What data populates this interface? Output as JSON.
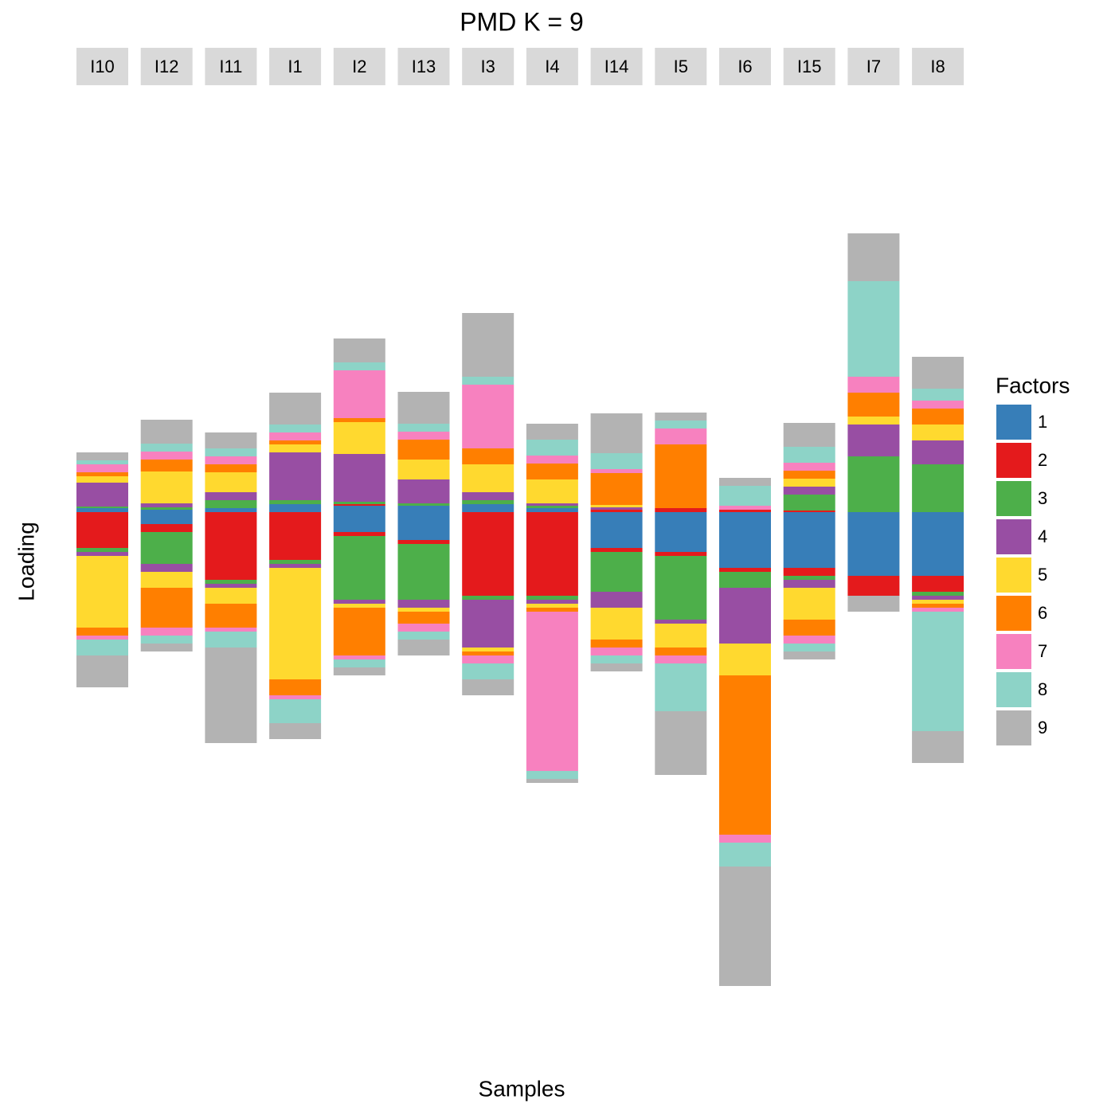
{
  "chart_data": {
    "type": "bar",
    "title": "PMD K = 9",
    "x_label": "Samples",
    "y_label": "Loading",
    "legend_title": "Factors",
    "categories": [
      "I10",
      "I12",
      "I11",
      "I1",
      "I2",
      "I13",
      "I3",
      "I4",
      "I14",
      "I5",
      "I6",
      "I15",
      "I7",
      "I8"
    ],
    "ylim": [
      -640,
      500
    ],
    "series": [
      {
        "name": "1",
        "color": "#377eb8",
        "values": [
          5,
          3,
          5,
          10,
          8,
          8,
          10,
          5,
          0,
          0,
          0,
          0,
          0,
          0
        ],
        "values_below": [
          0,
          -15,
          0,
          0,
          -25,
          -35,
          0,
          0,
          -45,
          -50,
          -70,
          -70,
          -80,
          -80
        ]
      },
      {
        "name": "2",
        "color": "#e41a1c",
        "values": [
          0,
          0,
          0,
          0,
          2,
          0,
          0,
          0,
          3,
          5,
          3,
          2,
          0,
          0
        ],
        "values_below": [
          -45,
          -10,
          -85,
          -60,
          -5,
          -5,
          -105,
          -105,
          -5,
          -5,
          -5,
          -10,
          -25,
          -20
        ]
      },
      {
        "name": "3",
        "color": "#4daf4a",
        "values": [
          2,
          3,
          10,
          5,
          3,
          3,
          5,
          3,
          0,
          0,
          0,
          20,
          70,
          60
        ],
        "values_below": [
          -5,
          -40,
          -5,
          -5,
          -80,
          -70,
          -5,
          -5,
          -50,
          -80,
          -20,
          -5,
          0,
          -5
        ]
      },
      {
        "name": "4",
        "color": "#984ea3",
        "values": [
          30,
          5,
          10,
          60,
          60,
          30,
          10,
          3,
          3,
          0,
          0,
          10,
          40,
          30
        ],
        "values_below": [
          -5,
          -10,
          -5,
          -5,
          -5,
          -10,
          -60,
          -5,
          -20,
          -5,
          -70,
          -10,
          0,
          -5
        ]
      },
      {
        "name": "5",
        "color": "#ffd92f",
        "values": [
          8,
          40,
          25,
          10,
          40,
          25,
          35,
          30,
          3,
          0,
          0,
          10,
          10,
          20
        ],
        "values_below": [
          -90,
          -20,
          -20,
          -140,
          -5,
          -5,
          -5,
          -5,
          -40,
          -30,
          -40,
          -40,
          0,
          -5
        ]
      },
      {
        "name": "6",
        "color": "#ff7f00",
        "values": [
          5,
          15,
          10,
          5,
          5,
          25,
          20,
          20,
          40,
          80,
          0,
          10,
          30,
          20
        ],
        "values_below": [
          -10,
          -50,
          -30,
          -20,
          -60,
          -15,
          -5,
          -5,
          -10,
          -10,
          -200,
          -20,
          0,
          -5
        ]
      },
      {
        "name": "7",
        "color": "#f781bf",
        "values": [
          10,
          10,
          10,
          10,
          60,
          10,
          80,
          10,
          5,
          20,
          5,
          10,
          20,
          10
        ],
        "values_below": [
          -5,
          -10,
          -5,
          -5,
          -5,
          -10,
          -10,
          -200,
          -10,
          -10,
          -10,
          -10,
          0,
          -5
        ]
      },
      {
        "name": "8",
        "color": "#8dd3c7",
        "values": [
          5,
          10,
          10,
          10,
          10,
          10,
          10,
          20,
          20,
          10,
          25,
          20,
          120,
          15
        ],
        "values_below": [
          -20,
          -10,
          -20,
          -30,
          -10,
          -10,
          -20,
          -10,
          -10,
          -60,
          -30,
          -10,
          0,
          -150
        ]
      },
      {
        "name": "9",
        "color": "#b3b3b3",
        "values": [
          10,
          30,
          20,
          40,
          30,
          40,
          80,
          20,
          50,
          10,
          10,
          30,
          60,
          40
        ],
        "values_below": [
          -40,
          -10,
          -120,
          -20,
          -10,
          -20,
          -20,
          -5,
          -10,
          -80,
          -150,
          -10,
          -20,
          -40
        ]
      }
    ]
  }
}
